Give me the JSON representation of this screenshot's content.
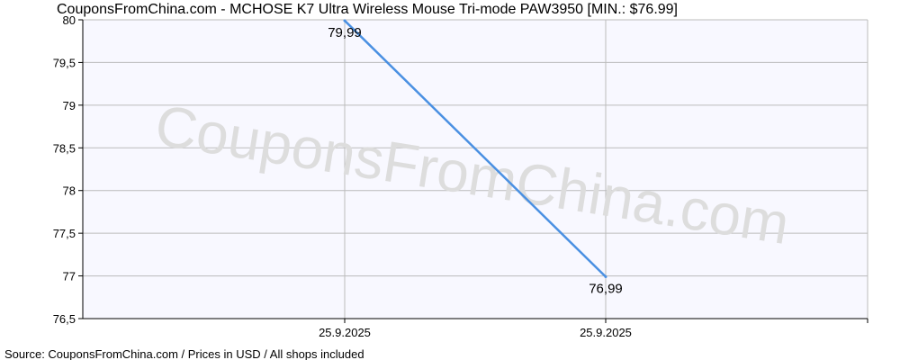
{
  "title": "CouponsFromChina.com - MCHOSE K7 Ultra Wireless Mouse Tri-mode PAW3950 [MIN.: $76.99]",
  "watermark": "CouponsFromChina.com",
  "footer": "Source: CouponsFromChina.com / Prices in USD / All shops included",
  "colors": {
    "line": "#4a90e2",
    "plot_bg": "#f8f8ff",
    "grid": "#bbbbbb",
    "axis": "#000000",
    "watermark": "#dddddd"
  },
  "chart_data": {
    "type": "line",
    "title": "CouponsFromChina.com - MCHOSE K7 Ultra Wireless Mouse Tri-mode PAW3950 [MIN.: $76.99]",
    "xlabel": "",
    "ylabel": "",
    "x": [
      "25.9.2025",
      "25.9.2025"
    ],
    "y_ticks": [
      "76,5",
      "77",
      "77,5",
      "78",
      "78,5",
      "79",
      "79,5",
      "80"
    ],
    "ylim": [
      76.5,
      80
    ],
    "series": [
      {
        "values": [
          79.99,
          76.99
        ],
        "labels": [
          "79,99",
          "76,99"
        ]
      }
    ],
    "grid": true,
    "legend": "none"
  }
}
